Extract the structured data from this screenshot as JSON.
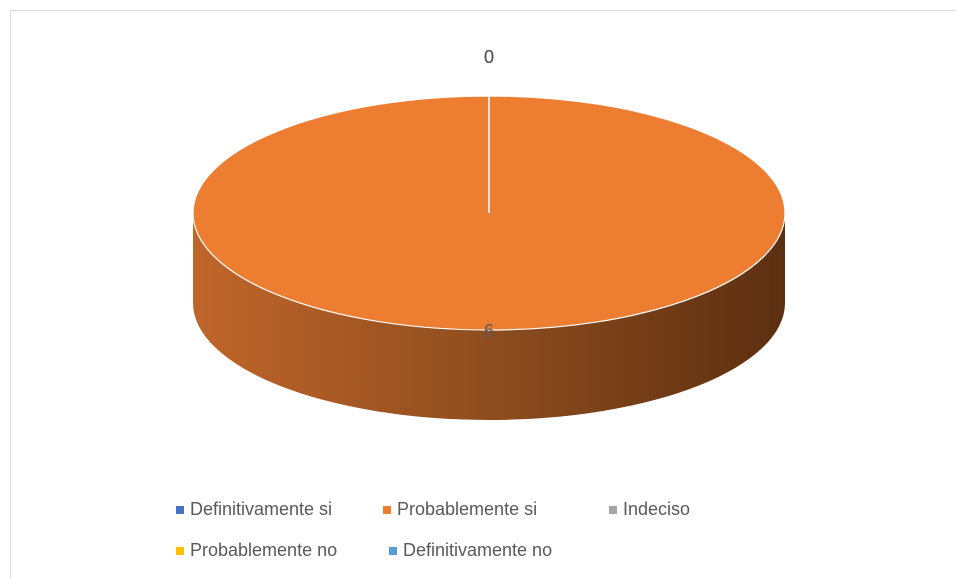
{
  "chart_data": {
    "type": "pie",
    "three_d": true,
    "categories": [
      "Definitivamente si",
      "Probablemente si",
      "Indeciso",
      "Probablemente no",
      "Definitivamente no"
    ],
    "values": [
      0,
      6,
      0,
      0,
      0
    ],
    "colors": [
      "#4472c4",
      "#ed7d31",
      "#a5a5a5",
      "#ffc000",
      "#5b9bd5"
    ],
    "legend": "bottom"
  }
}
